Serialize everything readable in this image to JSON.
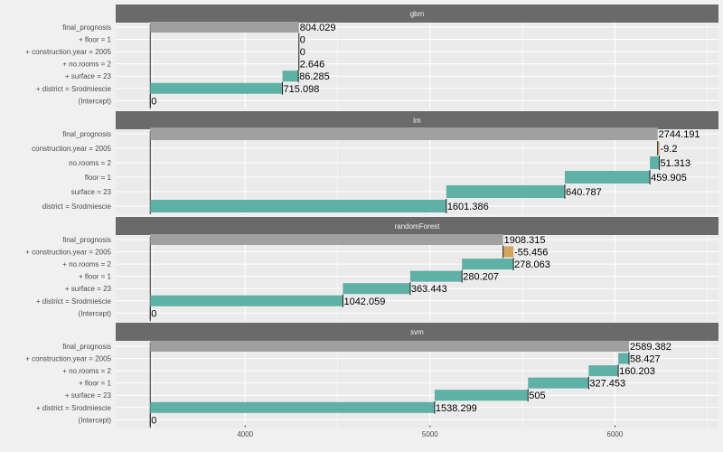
{
  "chart_data": {
    "type": "bar",
    "subtype": "break-down",
    "xlim": [
      3300,
      6560
    ],
    "x_ticks": [
      4000,
      5000,
      6000
    ],
    "x_tick_labels": [
      "4000",
      "5000",
      "6000"
    ],
    "grid": true,
    "baseline": 3487,
    "colors": {
      "positive": "#5fb0a5",
      "negative": "#d4a45c",
      "prediction": "#a0a0a0",
      "strip": "#6a6a6a",
      "panel_bg": "#ebebeb",
      "page_bg": "#f0f0f0"
    },
    "panels": [
      {
        "name": "gbm",
        "rows": [
          {
            "label": "final_prognosis",
            "start": 3487,
            "end": 4291,
            "value_label": "804.029",
            "kind": "prediction"
          },
          {
            "label": "+ floor = 1",
            "start": 4291,
            "end": 4291,
            "value_label": "0",
            "kind": "positive"
          },
          {
            "label": "+ construction.year = 2005",
            "start": 4291,
            "end": 4291,
            "value_label": "0",
            "kind": "positive"
          },
          {
            "label": "+ no.rooms = 2",
            "start": 4288,
            "end": 4291,
            "value_label": "2.646",
            "kind": "positive"
          },
          {
            "label": "+ surface = 23",
            "start": 4202,
            "end": 4288,
            "value_label": "86.285",
            "kind": "positive"
          },
          {
            "label": "+ district = Srodmiescie",
            "start": 3487,
            "end": 4202,
            "value_label": "715.098",
            "kind": "positive"
          },
          {
            "label": "(Intercept)",
            "start": 3487,
            "end": 3487,
            "value_label": "0",
            "kind": "positive"
          }
        ]
      },
      {
        "name": "lm",
        "rows": [
          {
            "label": "final_prognosis",
            "start": 3487,
            "end": 6231,
            "value_label": "2744.191",
            "kind": "prediction"
          },
          {
            "label": "construction.year = 2005",
            "start": 6231,
            "end": 6240,
            "value_label": "-9.2",
            "kind": "negative"
          },
          {
            "label": "no.rooms = 2",
            "start": 6189,
            "end": 6240,
            "value_label": "51.313",
            "kind": "positive"
          },
          {
            "label": "floor = 1",
            "start": 5729,
            "end": 6189,
            "value_label": "459.905",
            "kind": "positive"
          },
          {
            "label": "surface = 23",
            "start": 5088,
            "end": 5729,
            "value_label": "640.787",
            "kind": "positive"
          },
          {
            "label": "district = Srodmiescie",
            "start": 3487,
            "end": 5088,
            "value_label": "1601.386",
            "kind": "positive"
          }
        ]
      },
      {
        "name": "randomForest",
        "rows": [
          {
            "label": "final_prognosis",
            "start": 3487,
            "end": 5395,
            "value_label": "1908.315",
            "kind": "prediction"
          },
          {
            "label": "+ construction.year = 2005",
            "start": 5395,
            "end": 5451,
            "value_label": "-55.456",
            "kind": "negative"
          },
          {
            "label": "+ no.rooms = 2",
            "start": 5173,
            "end": 5451,
            "value_label": "278.063",
            "kind": "positive"
          },
          {
            "label": "+ floor = 1",
            "start": 4893,
            "end": 5173,
            "value_label": "280.207",
            "kind": "positive"
          },
          {
            "label": "+ surface = 23",
            "start": 4529,
            "end": 4893,
            "value_label": "363.443",
            "kind": "positive"
          },
          {
            "label": "+ district = Srodmiescie",
            "start": 3487,
            "end": 4529,
            "value_label": "1042.059",
            "kind": "positive"
          },
          {
            "label": "(Intercept)",
            "start": 3487,
            "end": 3487,
            "value_label": "0",
            "kind": "positive"
          }
        ]
      },
      {
        "name": "svm",
        "rows": [
          {
            "label": "final_prognosis",
            "start": 3487,
            "end": 6076,
            "value_label": "2589.382",
            "kind": "prediction"
          },
          {
            "label": "+ construction.year = 2005",
            "start": 6018,
            "end": 6076,
            "value_label": "58.427",
            "kind": "positive"
          },
          {
            "label": "+ no.rooms = 2",
            "start": 5858,
            "end": 6018,
            "value_label": "160.203",
            "kind": "positive"
          },
          {
            "label": "+ floor = 1",
            "start": 5530,
            "end": 5858,
            "value_label": "327.453",
            "kind": "positive"
          },
          {
            "label": "+ surface = 23",
            "start": 5025,
            "end": 5530,
            "value_label": "505",
            "kind": "positive"
          },
          {
            "label": "+ district = Srodmiescie",
            "start": 3487,
            "end": 5025,
            "value_label": "1538.299",
            "kind": "positive"
          },
          {
            "label": "(Intercept)",
            "start": 3487,
            "end": 3487,
            "value_label": "0",
            "kind": "positive"
          }
        ]
      }
    ]
  }
}
